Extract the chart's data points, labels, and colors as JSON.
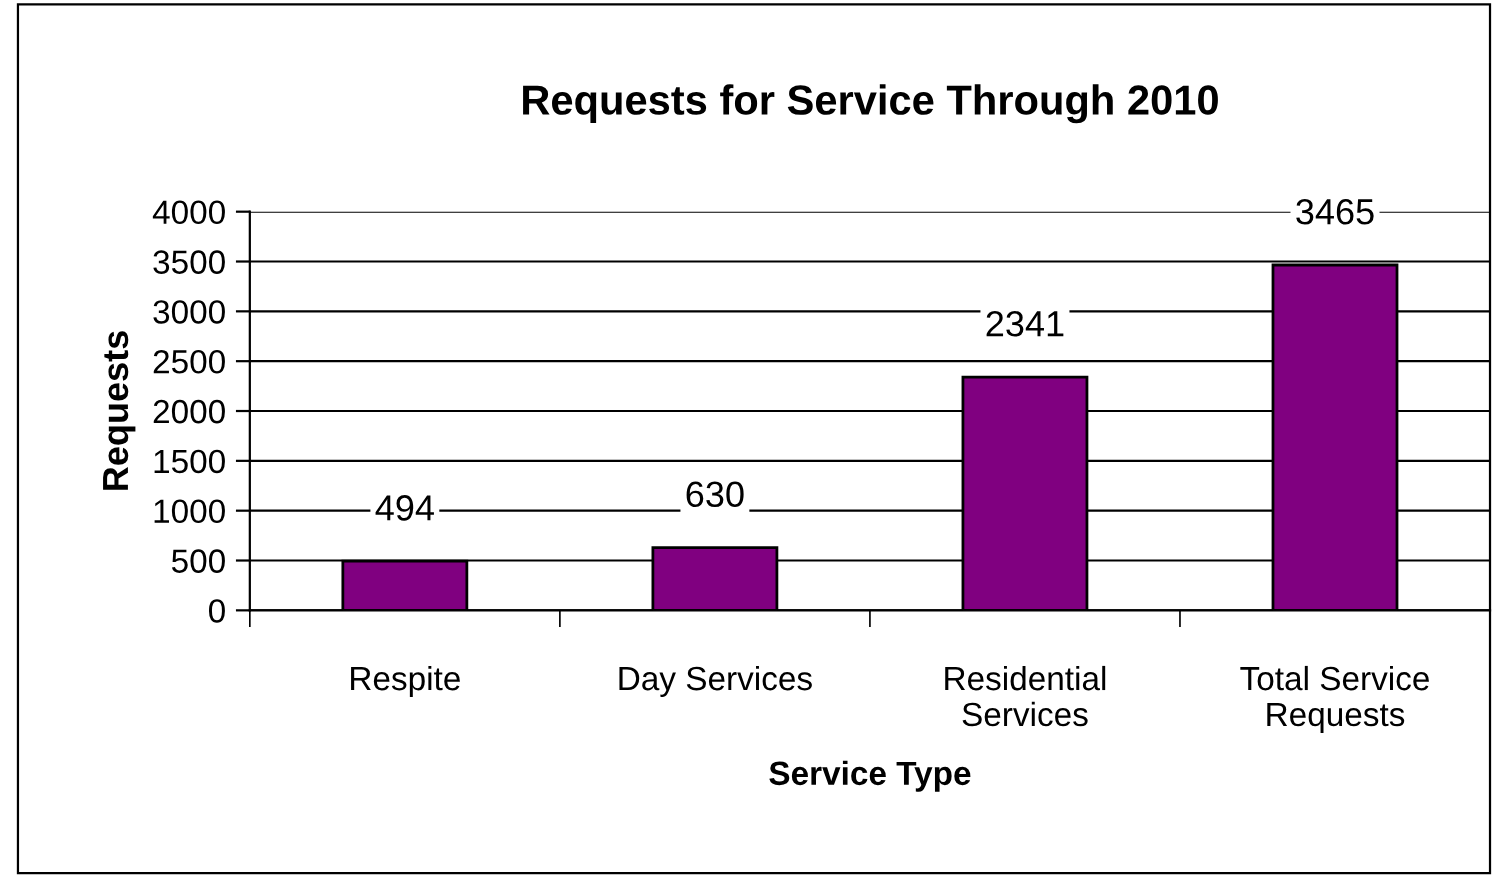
{
  "chart_data": {
    "type": "bar",
    "title": "Requests for Service Through 2010",
    "xlabel": "Service Type",
    "ylabel": "Requests",
    "categories": [
      "Respite",
      "Day Services",
      "Residential\nServices",
      "Total Service\nRequests"
    ],
    "values": [
      494,
      630,
      2341,
      3465
    ],
    "color": "#800080",
    "ylim": [
      0,
      4000
    ],
    "yticks": [
      0,
      500,
      1000,
      1500,
      2000,
      2500,
      3000,
      3500,
      4000
    ],
    "grid": "y",
    "data_labels": true,
    "legend": false
  }
}
